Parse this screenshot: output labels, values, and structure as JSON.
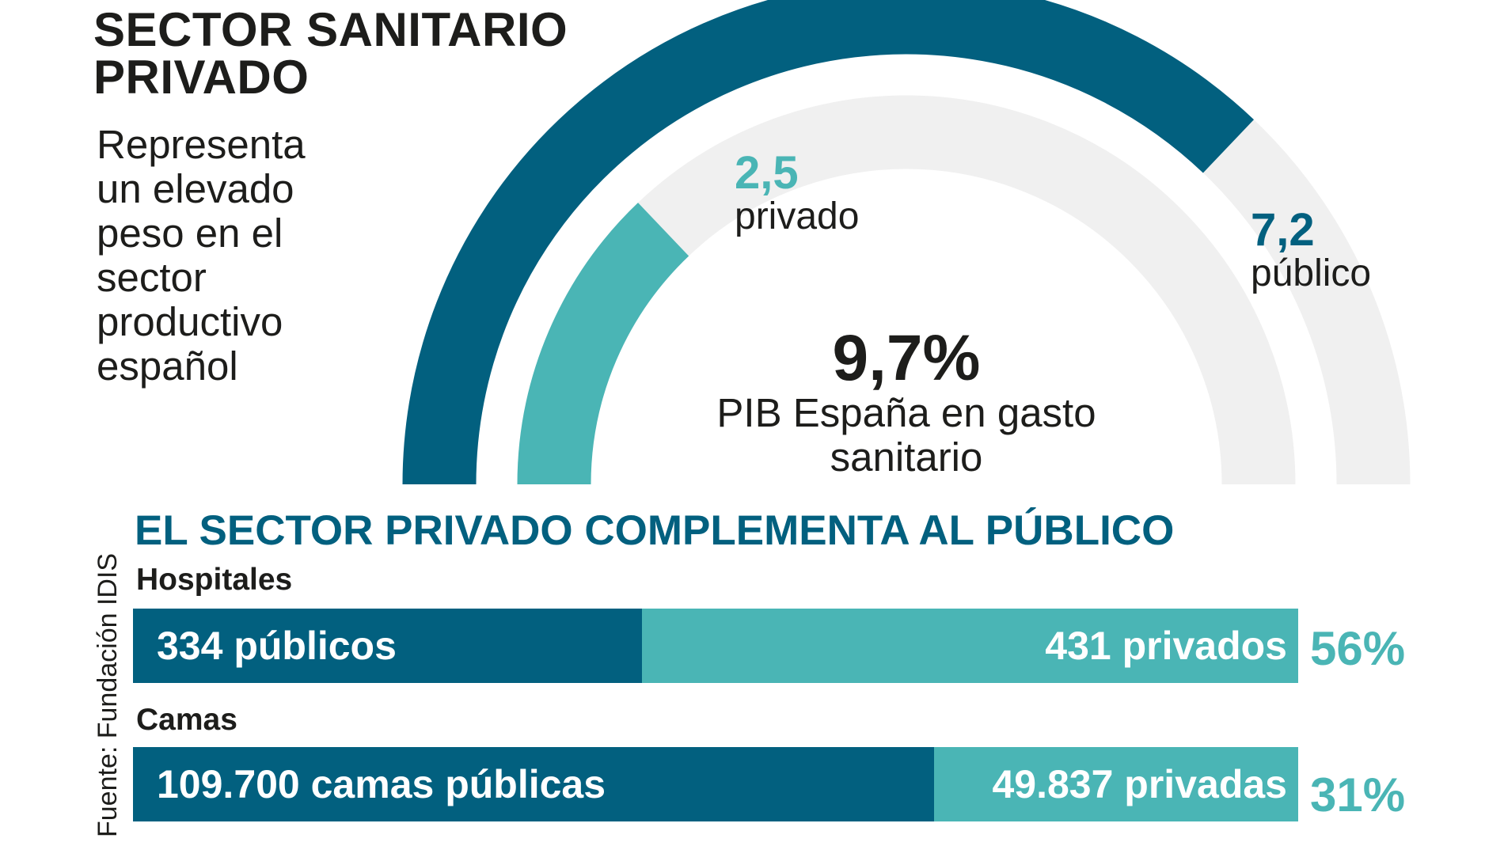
{
  "title_lines": [
    "SECTOR SANITARIO",
    "PRIVADO"
  ],
  "description_lines": [
    "Representa",
    "un elevado",
    "peso en el",
    "sector",
    "productivo",
    "español"
  ],
  "source": "Fuente: Fundación IDIS",
  "colors": {
    "public": "#02607f",
    "private": "#4ab5b5",
    "track": "#f0f0f0",
    "text": "#1d1d1b"
  },
  "chart_data": [
    {
      "type": "gauge",
      "total": {
        "value": "9,7%",
        "label_lines": [
          "PIB España en gasto",
          "sanitario"
        ]
      },
      "max": 9.7,
      "series": [
        {
          "name": "público",
          "value": 7.2,
          "label": "7,2"
        },
        {
          "name": "privado",
          "value": 2.5,
          "label": "2,5"
        }
      ]
    },
    {
      "type": "bar",
      "title": "EL SECTOR PRIVADO COMPLEMENTA AL PÚBLICO",
      "groups": [
        {
          "name": "Hospitales",
          "public": {
            "value": 334,
            "label": "334 públicos"
          },
          "private": {
            "value": 431,
            "label": "431 privados"
          },
          "private_share": "56%"
        },
        {
          "name": "Camas",
          "public": {
            "value": 109700,
            "label": "109.700 camas públicas"
          },
          "private": {
            "value": 49837,
            "label": "49.837 privadas"
          },
          "private_share": "31%"
        }
      ]
    }
  ]
}
